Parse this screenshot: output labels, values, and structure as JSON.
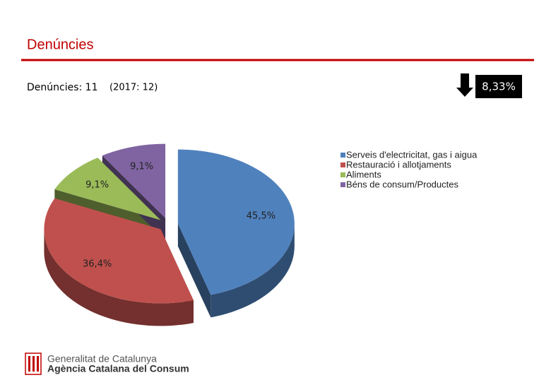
{
  "header": {
    "title": "Denúncies",
    "subtitle": "Denúncies: 11",
    "previous": "(2017: 12)",
    "change": "8,33%"
  },
  "chart_data": {
    "type": "pie",
    "categories": [
      "Serveis d'electricitat, gas i aigua",
      "Restauració i allotjaments",
      "Aliments",
      "Béns de consum/Productes"
    ],
    "values": [
      45.5,
      36.4,
      9.1,
      9.1
    ],
    "value_labels": [
      "45,5%",
      "36,4%",
      "9,1%",
      "9,1%"
    ],
    "colors": [
      "#4f81bd",
      "#c0504d",
      "#9bbb59",
      "#8064a2"
    ],
    "legend": "right"
  },
  "footer": {
    "line1": "Generalitat de Catalunya",
    "line2": "Agència Catalana del Consum"
  }
}
